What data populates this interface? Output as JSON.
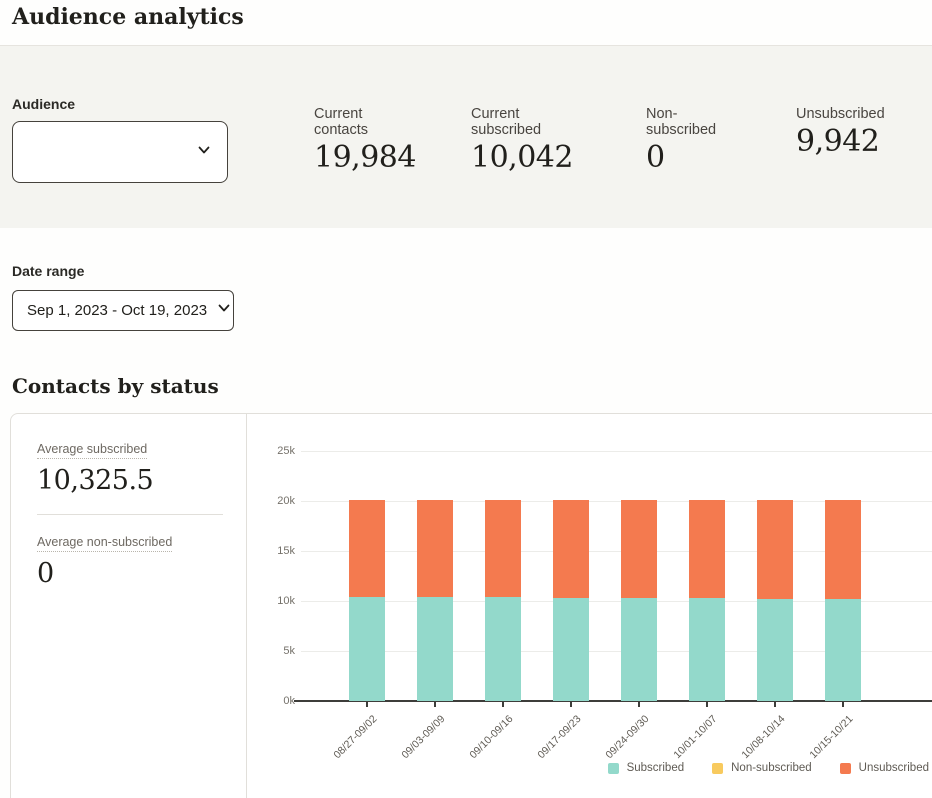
{
  "page": {
    "title": "Audience analytics"
  },
  "audience_panel": {
    "audience_label": "Audience",
    "audience_select_value": "",
    "stats": [
      {
        "label": "Current contacts",
        "value": "19,984"
      },
      {
        "label": "Current subscribed",
        "value": "10,042"
      },
      {
        "label": "Non-subscribed",
        "value": "0"
      },
      {
        "label": "Unsubscribed",
        "value": "9,942"
      }
    ]
  },
  "date_range": {
    "label": "Date range",
    "value": "Sep 1, 2023 - Oct 19, 2023"
  },
  "contacts_by_status": {
    "heading": "Contacts by status",
    "summary": [
      {
        "label": "Average subscribed",
        "value": "10,325.5"
      },
      {
        "label": "Average non-subscribed",
        "value": "0"
      }
    ]
  },
  "chart_data": {
    "type": "bar",
    "stacked": true,
    "title": "Contacts by status",
    "categories": [
      "08/27-09/02",
      "09/03-09/09",
      "09/10-09/16",
      "09/17-09/23",
      "09/24-09/30",
      "10/01-10/07",
      "10/08-10/14",
      "10/15-10/21"
    ],
    "series": [
      {
        "name": "Subscribed",
        "color": "#93d9cb",
        "values": [
          10400,
          10450,
          10380,
          10330,
          10300,
          10330,
          10230,
          10184
        ]
      },
      {
        "name": "Non-subscribed",
        "color": "#f8ca5e",
        "values": [
          0,
          0,
          0,
          0,
          0,
          0,
          0,
          0
        ]
      },
      {
        "name": "Unsubscribed",
        "color": "#f47a4f",
        "values": [
          9700,
          9680,
          9720,
          9760,
          9790,
          9770,
          9860,
          9900
        ]
      }
    ],
    "xlabel": "",
    "ylabel": "",
    "ylim": [
      0,
      25000
    ],
    "y_ticks": [
      {
        "value": 0,
        "label": "0k"
      },
      {
        "value": 5000,
        "label": "5k"
      },
      {
        "value": 10000,
        "label": "10k"
      },
      {
        "value": 15000,
        "label": "15k"
      },
      {
        "value": 20000,
        "label": "20k"
      },
      {
        "value": 25000,
        "label": "25k"
      }
    ],
    "grid": true,
    "legend_position": "bottom-right"
  },
  "colors": {
    "panel_bg": "#f4f4f0",
    "text_dark": "#21201c",
    "text_gray": "#5f5b54",
    "border": "#e1dfda",
    "axis": "#3d3d3a"
  }
}
